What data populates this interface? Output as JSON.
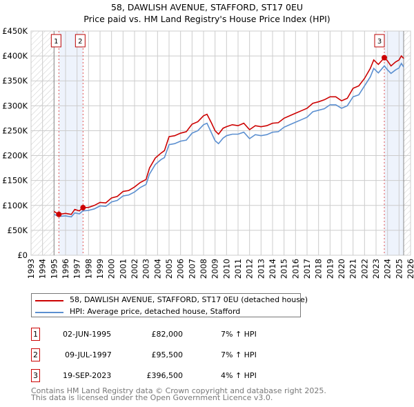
{
  "chart_data": {
    "type": "line",
    "title": "58, DAWLISH AVENUE, STAFFORD, ST17 0EU",
    "subtitle": "Price paid vs. HM Land Registry's House Price Index (HPI)",
    "xlim": [
      1993,
      2026
    ],
    "ylim": [
      0,
      450000
    ],
    "x_ticks": [
      "1993",
      "1994",
      "1995",
      "1996",
      "1997",
      "1998",
      "1999",
      "2000",
      "2001",
      "2002",
      "2003",
      "2004",
      "2005",
      "2006",
      "2007",
      "2008",
      "2009",
      "2010",
      "2011",
      "2012",
      "2013",
      "2014",
      "2015",
      "2016",
      "2017",
      "2018",
      "2019",
      "2020",
      "2021",
      "2022",
      "2023",
      "2024",
      "2025",
      "2026"
    ],
    "y_ticks": [
      {
        "v": 0,
        "label": "£0"
      },
      {
        "v": 50000,
        "label": "£50K"
      },
      {
        "v": 100000,
        "label": "£100K"
      },
      {
        "v": 150000,
        "label": "£150K"
      },
      {
        "v": 200000,
        "label": "£200K"
      },
      {
        "v": 250000,
        "label": "£250K"
      },
      {
        "v": 300000,
        "label": "£300K"
      },
      {
        "v": 350000,
        "label": "£350K"
      },
      {
        "v": 400000,
        "label": "£400K"
      },
      {
        "v": 450000,
        "label": "£450K"
      }
    ],
    "grid": true,
    "hatched_ranges": [
      [
        1993,
        1995.0
      ],
      [
        2025.4,
        2026
      ]
    ],
    "shaded_ranges": [
      [
        1995.42,
        1997.52
      ],
      [
        2023.72,
        2025.4
      ]
    ],
    "series": [
      {
        "name": "58, DAWLISH AVENUE, STAFFORD, ST17 0EU (detached house)",
        "color": "#cc0000",
        "x": [
          1995.0,
          1995.4,
          1996,
          1996.5,
          1996.8,
          1997.2,
          1997.5,
          1998,
          1998.5,
          1999,
          1999.5,
          2000,
          2000.5,
          2001,
          2001.5,
          2002,
          2002.5,
          2003,
          2003.3,
          2003.8,
          2004.3,
          2004.6,
          2005,
          2005.5,
          2006,
          2006.5,
          2007,
          2007.5,
          2008,
          2008.3,
          2008.7,
          2009.0,
          2009.3,
          2009.7,
          2010,
          2010.5,
          2011,
          2011.5,
          2012,
          2012.5,
          2013,
          2013.5,
          2014,
          2014.5,
          2015,
          2015.5,
          2016,
          2016.5,
          2017,
          2017.5,
          2018,
          2018.5,
          2019,
          2019.5,
          2020,
          2020.5,
          2021,
          2021.5,
          2022,
          2022.5,
          2022.8,
          2023.2,
          2023.72,
          2024,
          2024.3,
          2024.7,
          2025,
          2025.2,
          2025.4
        ],
        "y": [
          88000,
          82000,
          84000,
          82000,
          92000,
          89000,
          95500,
          96000,
          100000,
          106000,
          105000,
          115000,
          118000,
          128000,
          130000,
          137000,
          146000,
          152000,
          175000,
          195000,
          205000,
          210000,
          238000,
          240000,
          245000,
          248000,
          263000,
          268000,
          280000,
          283000,
          265000,
          250000,
          243000,
          255000,
          258000,
          262000,
          260000,
          265000,
          252000,
          260000,
          258000,
          260000,
          265000,
          266000,
          275000,
          280000,
          285000,
          290000,
          295000,
          305000,
          308000,
          312000,
          318000,
          318000,
          310000,
          315000,
          335000,
          340000,
          355000,
          375000,
          392000,
          383000,
          396500,
          390000,
          380000,
          388000,
          392000,
          400000,
          395000
        ]
      },
      {
        "name": "HPI: Average price, detached house, Stafford",
        "color": "#5b8fd0",
        "x": [
          1995.0,
          1995.4,
          1996,
          1996.5,
          1996.8,
          1997.2,
          1997.5,
          1998,
          1998.5,
          1999,
          1999.5,
          2000,
          2000.5,
          2001,
          2001.5,
          2002,
          2002.5,
          2003,
          2003.3,
          2003.8,
          2004.3,
          2004.6,
          2005,
          2005.5,
          2006,
          2006.5,
          2007,
          2007.5,
          2008,
          2008.3,
          2008.7,
          2009.0,
          2009.3,
          2009.7,
          2010,
          2010.5,
          2011,
          2011.5,
          2012,
          2012.5,
          2013,
          2013.5,
          2014,
          2014.5,
          2015,
          2015.5,
          2016,
          2016.5,
          2017,
          2017.5,
          2018,
          2018.5,
          2019,
          2019.5,
          2020,
          2020.5,
          2021,
          2021.5,
          2022,
          2022.5,
          2022.8,
          2023.2,
          2023.72,
          2024,
          2024.3,
          2024.7,
          2025,
          2025.2,
          2025.4
        ],
        "y": [
          82000,
          78000,
          79000,
          77000,
          85000,
          83000,
          89000,
          90000,
          93000,
          99000,
          98000,
          107000,
          110000,
          119000,
          121000,
          127000,
          136000,
          142000,
          163000,
          182000,
          192000,
          196000,
          222000,
          224000,
          229000,
          231000,
          245000,
          250000,
          262000,
          265000,
          245000,
          230000,
          224000,
          235000,
          240000,
          243000,
          243000,
          247000,
          234000,
          242000,
          240000,
          242000,
          247000,
          248000,
          257000,
          262000,
          267000,
          272000,
          277000,
          288000,
          291000,
          294000,
          302000,
          302000,
          295000,
          300000,
          318000,
          322000,
          340000,
          358000,
          375000,
          366000,
          380000,
          372000,
          365000,
          372000,
          376000,
          385000,
          378000
        ]
      }
    ],
    "sales": [
      {
        "label": "1",
        "x": 1995.42,
        "y": 82000
      },
      {
        "label": "2",
        "x": 1997.52,
        "y": 95500
      },
      {
        "label": "3",
        "x": 2023.72,
        "y": 396500
      }
    ]
  },
  "legend": {
    "property": "58, DAWLISH AVENUE, STAFFORD, ST17 0EU (detached house)",
    "hpi": "HPI: Average price, detached house, Stafford"
  },
  "transactions": [
    {
      "num": "1",
      "date": "02-JUN-1995",
      "price": "£82,000",
      "hpi": "7% ↑ HPI"
    },
    {
      "num": "2",
      "date": "09-JUL-1997",
      "price": "£95,500",
      "hpi": "7% ↑ HPI"
    },
    {
      "num": "3",
      "date": "19-SEP-2023",
      "price": "£396,500",
      "hpi": "4% ↑ HPI"
    }
  ],
  "footer": {
    "line1": "Contains HM Land Registry data © Crown copyright and database right 2025.",
    "line2": "This data is licensed under the Open Government Licence v3.0."
  }
}
